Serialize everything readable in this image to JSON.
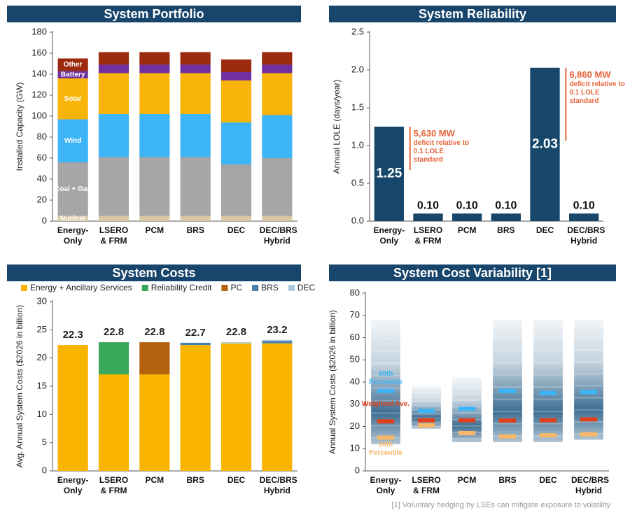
{
  "chart_data": [
    {
      "type": "stacked_bar",
      "title": "System Portfolio",
      "y_label": "Installed Capacity (GW)",
      "categories": [
        "Energy-Only",
        "LSERO & FRM",
        "PCM",
        "BRS",
        "DEC",
        "DEC/BRS Hybrid"
      ],
      "series": [
        {
          "name": "Nuclear",
          "color": "#d8c9a3",
          "values": [
            5,
            5,
            5,
            5,
            5,
            5
          ]
        },
        {
          "name": "Coal + Gas",
          "color": "#a6a6a6",
          "values": [
            51,
            56,
            56,
            56,
            49,
            55
          ]
        },
        {
          "name": "Wind",
          "color": "#3db4f6",
          "values": [
            41,
            41,
            41,
            41,
            40,
            41
          ]
        },
        {
          "name": "Solar",
          "color": "#f9b40a",
          "values": [
            39,
            39,
            39,
            39,
            40,
            40
          ]
        },
        {
          "name": "Battery",
          "color": "#7030a0",
          "values": [
            7,
            8,
            8,
            8,
            8,
            8
          ]
        },
        {
          "name": "Other",
          "color": "#9c2a0c",
          "values": [
            12,
            12,
            12,
            12,
            12,
            12
          ]
        }
      ],
      "ylim": [
        0,
        180
      ],
      "yticks": [
        0,
        20,
        40,
        60,
        80,
        100,
        120,
        140,
        160,
        180
      ]
    },
    {
      "type": "bar",
      "title": "System Reliability",
      "y_label": "Annual LOLE (days/year)",
      "categories": [
        "Energy-Only",
        "LSERO & FRM",
        "PCM",
        "BRS",
        "DEC",
        "DEC/BRS Hybrid"
      ],
      "values": [
        1.25,
        0.1,
        0.1,
        0.1,
        2.03,
        0.1
      ],
      "value_labels": [
        "1.25",
        "0.10",
        "0.10",
        "0.10",
        "2.03",
        "0.10"
      ],
      "color": "#17476b",
      "annotations": [
        {
          "category": "Energy-Only",
          "title": "5,630 MW",
          "text": "deficit relative to 0.1 LOLE standard"
        },
        {
          "category": "DEC",
          "title": "6,860 MW",
          "text": "deficit relative to 0.1 LOLE standard"
        }
      ],
      "annotation_color": "#e8643c",
      "ylim": [
        0,
        2.5
      ],
      "yticks": [
        {
          "value": 0,
          "label": "0.0"
        },
        {
          "value": 0.5,
          "label": "0.5"
        },
        {
          "value": 1,
          "label": "1.0"
        },
        {
          "value": 1.5,
          "label": "1.5"
        },
        {
          "value": 2,
          "label": "2.0"
        },
        {
          "value": 2.5,
          "label": "2.5"
        }
      ]
    },
    {
      "type": "stacked_bar",
      "title": "System Costs",
      "y_label": "Avg. Annual System Costs ($2026 in billion)",
      "categories": [
        "Energy-Only",
        "LSERO & FRM",
        "PCM",
        "BRS",
        "DEC",
        "DEC/BRS Hybrid"
      ],
      "series": [
        {
          "name": "Energy + Ancillary Services",
          "color": "#f9b400",
          "values": [
            22.3,
            17.1,
            17.1,
            22.3,
            22.6,
            22.6
          ]
        },
        {
          "name": "Reliability Credit",
          "color": "#3aa85a",
          "values": [
            0,
            5.7,
            0,
            0,
            0,
            0
          ]
        },
        {
          "name": "PC",
          "color": "#b5620e",
          "values": [
            0,
            0,
            5.7,
            0,
            0,
            0
          ]
        },
        {
          "name": "BRS",
          "color": "#477fa8",
          "values": [
            0,
            0,
            0,
            0.4,
            0,
            0.4
          ]
        },
        {
          "name": "DEC",
          "color": "#a9c9df",
          "values": [
            0,
            0,
            0,
            0,
            0.2,
            0.2
          ]
        }
      ],
      "totals": [
        22.3,
        22.8,
        22.8,
        22.7,
        22.8,
        23.2
      ],
      "legend": "top",
      "ylim": [
        0,
        30
      ],
      "yticks": [
        0,
        5,
        10,
        15,
        20,
        25,
        30
      ]
    },
    {
      "type": "distribution",
      "title": "System Cost Variability [1]",
      "y_label": "Annual System Costs ($2026 in billion)",
      "categories": [
        "Energy-Only",
        "LSERO & FRM",
        "PCM",
        "BRS",
        "DEC",
        "DEC/BRS Hybrid"
      ],
      "low": [
        12,
        19,
        13,
        13,
        13,
        14
      ],
      "high": [
        68,
        38,
        42,
        68,
        68,
        68
      ],
      "range_color": "#1d5580",
      "series": [
        {
          "name": "90th Percentile",
          "color": "#3db4f6",
          "values": [
            36,
            27,
            28,
            36,
            35,
            35.5
          ]
        },
        {
          "name": "Weighted Ave.",
          "color": "#e0401c",
          "values": [
            22.3,
            22.8,
            22.8,
            22.7,
            22.8,
            23.2
          ]
        },
        {
          "name": "10th Percentile",
          "color": "#f9b868",
          "values": [
            15,
            20.5,
            17,
            15.5,
            16,
            16.5
          ]
        }
      ],
      "footnote": "[1] Voluntary hedging by LSEs can mitigate exposure to volatility",
      "ylim": [
        0,
        80
      ],
      "yticks": [
        0,
        10,
        20,
        30,
        40,
        50,
        60,
        70,
        80
      ]
    }
  ]
}
